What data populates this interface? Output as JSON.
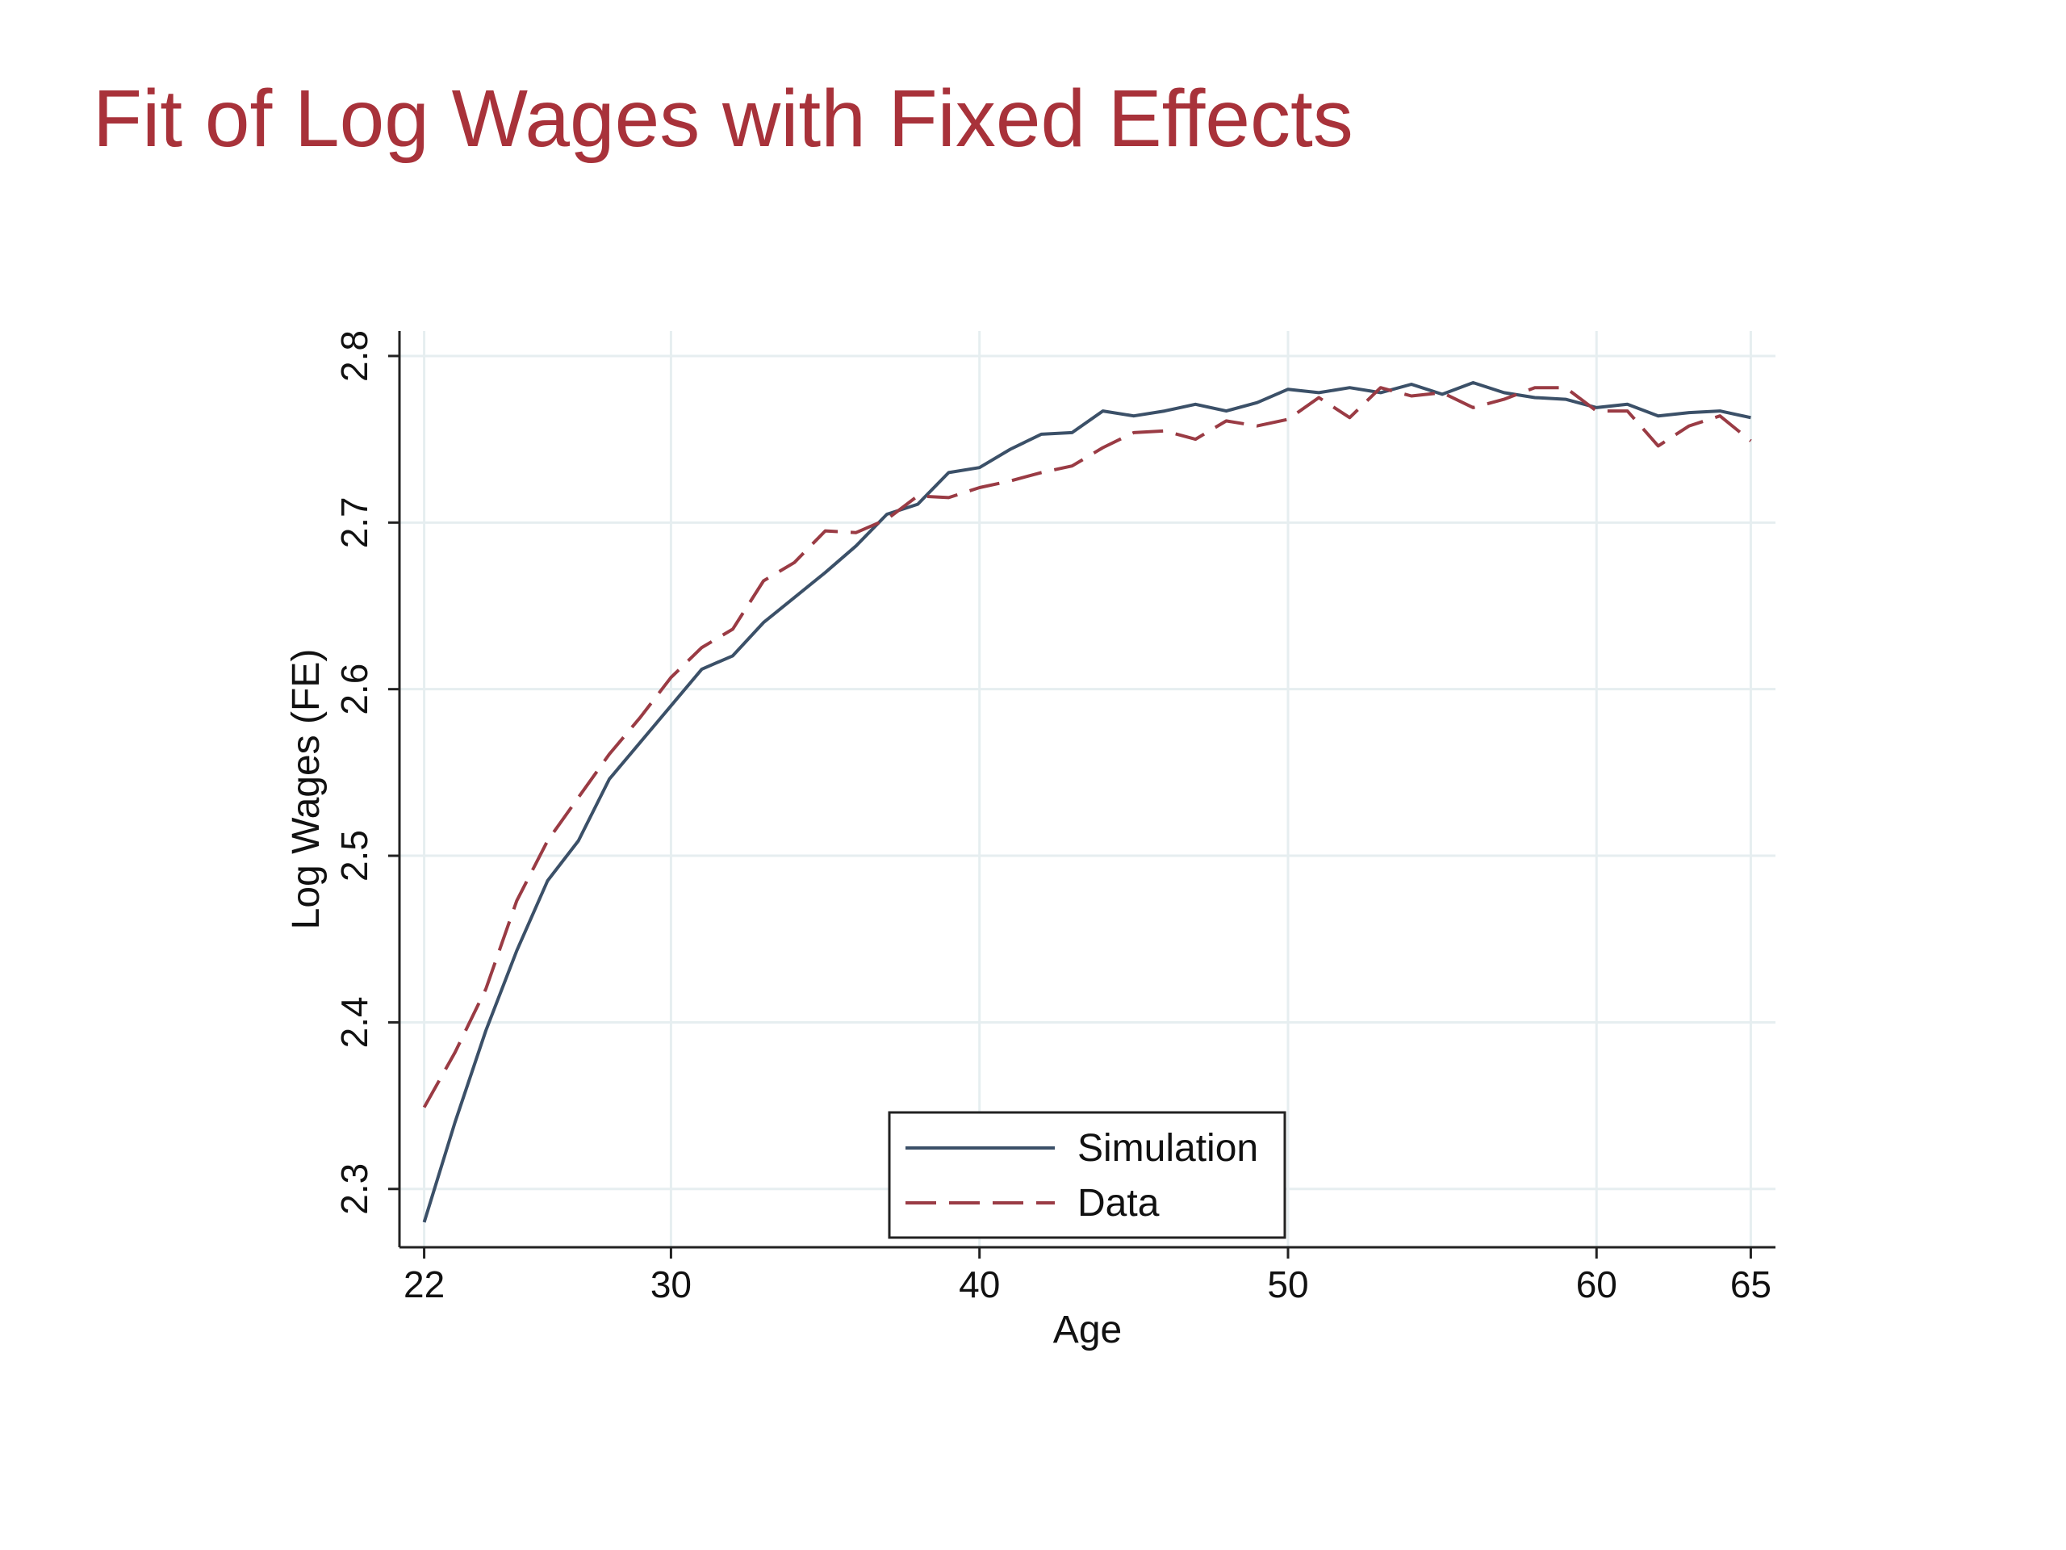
{
  "page": {
    "title": "Fit of Log Wages with Fixed Effects"
  },
  "chart_data": {
    "type": "line",
    "title": "",
    "xlabel": "Age",
    "ylabel": "Log Wages (FE)",
    "xlim": [
      21.2,
      65.8
    ],
    "ylim": [
      2.265,
      2.815
    ],
    "xticks": [
      22,
      30,
      40,
      50,
      60,
      65
    ],
    "yticks": [
      2.3,
      2.4,
      2.5,
      2.6,
      2.7,
      2.8
    ],
    "grid": true,
    "legend_position": "bottom-center",
    "x": [
      22,
      23,
      24,
      25,
      26,
      27,
      28,
      29,
      30,
      31,
      32,
      33,
      34,
      35,
      36,
      37,
      38,
      39,
      40,
      41,
      42,
      43,
      44,
      45,
      46,
      47,
      48,
      49,
      50,
      51,
      52,
      53,
      54,
      55,
      56,
      57,
      58,
      59,
      60,
      61,
      62,
      63,
      64,
      65
    ],
    "series": [
      {
        "name": "Simulation",
        "style": "solid",
        "color": "#3b5068",
        "values": [
          2.28,
          2.34,
          2.395,
          2.443,
          2.485,
          2.509,
          2.546,
          2.568,
          2.59,
          2.612,
          2.62,
          2.64,
          2.655,
          2.67,
          2.686,
          2.705,
          2.711,
          2.73,
          2.733,
          2.744,
          2.753,
          2.754,
          2.767,
          2.764,
          2.767,
          2.771,
          2.767,
          2.772,
          2.78,
          2.778,
          2.781,
          2.778,
          2.783,
          2.777,
          2.784,
          2.778,
          2.775,
          2.774,
          2.769,
          2.771,
          2.764,
          2.766,
          2.767,
          2.763
        ]
      },
      {
        "name": "Data",
        "style": "dashed",
        "color": "#9a3b44",
        "values": [
          2.349,
          2.382,
          2.42,
          2.473,
          2.509,
          2.535,
          2.561,
          2.583,
          2.607,
          2.625,
          2.636,
          2.665,
          2.676,
          2.695,
          2.694,
          2.702,
          2.716,
          2.715,
          2.721,
          2.725,
          2.73,
          2.734,
          2.745,
          2.754,
          2.755,
          2.75,
          2.761,
          2.758,
          2.762,
          2.775,
          2.763,
          2.781,
          2.776,
          2.778,
          2.769,
          2.774,
          2.781,
          2.781,
          2.767,
          2.767,
          2.746,
          2.758,
          2.764,
          2.749
        ]
      }
    ]
  }
}
